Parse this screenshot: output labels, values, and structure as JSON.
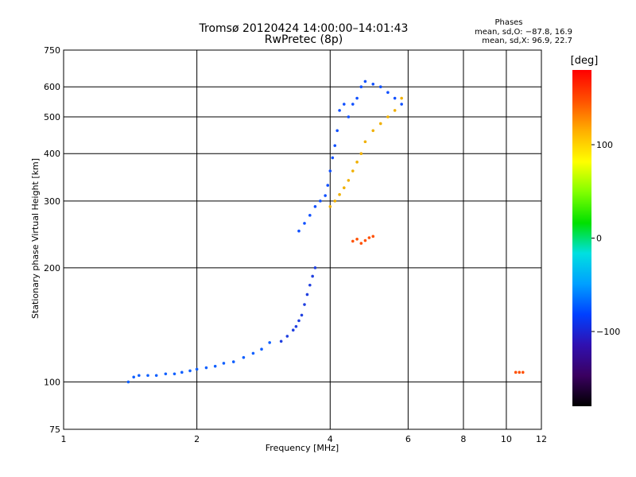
{
  "chart_data": {
    "type": "scatter",
    "title": "Tromsø 20120424 14:00:00–14:01:43",
    "subtitle": "RwPretec (8p)",
    "xlabel": "Frequency [MHz]",
    "ylabel": "Stationary phase Virtual Height [km]",
    "x_scale": "log",
    "y_scale": "log",
    "xlim": [
      1,
      12
    ],
    "ylim": [
      75,
      750
    ],
    "x_ticks": [
      "1",
      "2",
      "4",
      "6",
      "8",
      "10",
      "12"
    ],
    "y_ticks": [
      "75",
      "100",
      "200",
      "300",
      "400",
      "500",
      "600",
      "750"
    ],
    "grid": true,
    "phase_stats": {
      "title": "Phases",
      "line1": "mean, sd,O: −87.8, 16.9",
      "line2": "mean, sd,X:  96.9, 22.7"
    },
    "colorbar": {
      "label": "[deg]",
      "range": [
        -180,
        180
      ],
      "ticks": [
        "100",
        "0",
        "−100"
      ],
      "colors": [
        "#000000",
        "#3a0060",
        "#3010b0",
        "#0040ff",
        "#00a0ff",
        "#00e0e0",
        "#00e000",
        "#80ff00",
        "#ffff00",
        "#ffb000",
        "#ff5000",
        "#ff0000"
      ]
    },
    "series": [
      {
        "color": "#1060ff",
        "x": [
          1.4,
          1.44,
          1.48,
          1.55,
          1.62,
          1.7,
          1.78,
          1.85,
          1.93,
          2.0,
          2.1,
          2.2,
          2.3,
          2.42,
          2.55,
          2.68,
          2.8,
          2.92
        ],
        "y": [
          100,
          103,
          104,
          104,
          104,
          105,
          105,
          106,
          107,
          108,
          109,
          110,
          112,
          113,
          116,
          119,
          122,
          127
        ]
      },
      {
        "color": "#2040e0",
        "x": [
          3.1,
          3.2,
          3.3,
          3.35,
          3.4,
          3.45,
          3.5,
          3.55,
          3.6,
          3.65,
          3.7
        ],
        "y": [
          128,
          132,
          137,
          140,
          145,
          150,
          160,
          170,
          180,
          190,
          200
        ]
      },
      {
        "color": "#1050ff",
        "x": [
          3.4,
          3.5,
          3.6,
          3.7,
          3.8,
          3.9,
          3.95,
          4.0,
          4.05,
          4.1,
          4.15,
          4.2,
          4.3,
          4.4,
          4.5,
          4.6,
          4.7,
          4.8,
          5.0,
          5.2,
          5.4,
          5.6,
          5.8
        ],
        "y": [
          250,
          262,
          275,
          290,
          300,
          310,
          330,
          360,
          390,
          420,
          460,
          520,
          540,
          500,
          540,
          560,
          600,
          620,
          610,
          600,
          580,
          560,
          540
        ]
      },
      {
        "color": "#f0b000",
        "x": [
          4.0,
          4.1,
          4.2,
          4.3,
          4.4,
          4.5,
          4.6,
          4.7,
          4.8,
          5.0,
          5.2,
          5.4,
          5.6,
          5.8
        ],
        "y": [
          290,
          300,
          312,
          325,
          340,
          360,
          380,
          400,
          430,
          460,
          480,
          500,
          520,
          560
        ]
      },
      {
        "color": "#ff5000",
        "x": [
          4.5,
          4.6,
          4.7,
          4.8,
          4.9,
          5.0,
          10.5,
          10.7,
          10.9
        ],
        "y": [
          235,
          238,
          232,
          236,
          240,
          242,
          106,
          106,
          106
        ]
      }
    ]
  }
}
